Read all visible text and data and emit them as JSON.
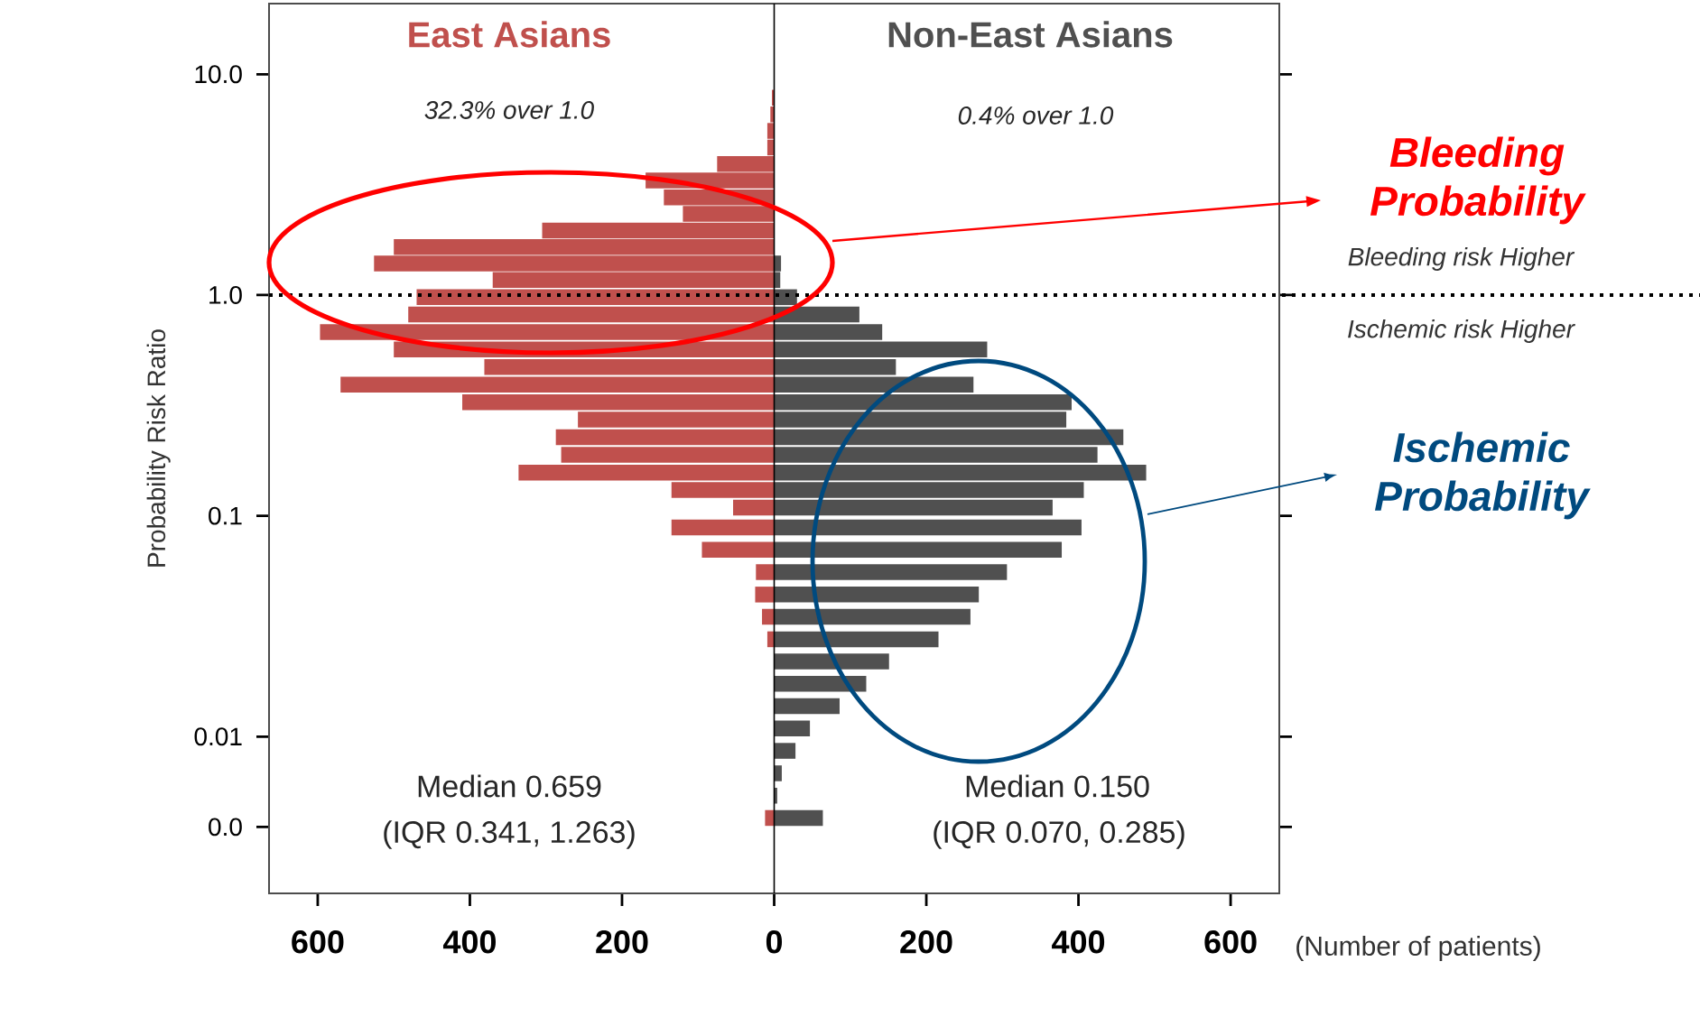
{
  "chart_data": {
    "type": "bar",
    "orientation": "horizontal",
    "ylabel": "Probability Risk Ratio",
    "xlabel": "(Number of patients)",
    "log": "y",
    "stacked": true,
    "x": [
      0.00428,
      0.0054,
      0.00682,
      0.00862,
      0.01088,
      0.01373,
      0.01734,
      0.0219,
      0.0276,
      0.0349,
      0.044,
      0.0556,
      0.0702,
      0.0886,
      0.109,
      0.131,
      0.157,
      0.189,
      0.227,
      0.273,
      0.327,
      0.393,
      0.472,
      0.567,
      0.68,
      0.817,
      0.978,
      1.17,
      1.39,
      1.65,
      1.96,
      2.33,
      2.77,
      3.3,
      3.92,
      4.66,
      5.54,
      6.58,
      7.83
    ],
    "series": [
      {
        "name": "East Asians",
        "color": "#c0504d",
        "values": [
          -12,
          0,
          0,
          0,
          0,
          0,
          0,
          0,
          -9,
          -16,
          -25,
          -24,
          -95,
          -135,
          -54,
          -135,
          -336,
          -280,
          -287,
          -258,
          -410,
          -570,
          -381,
          -500,
          -597,
          -481,
          -470,
          -370,
          -526,
          -500,
          -305,
          -120,
          -145,
          -169,
          -75,
          -9,
          -9,
          -5,
          -3
        ]
      },
      {
        "name": "Non-East Asians",
        "color": "#505050",
        "values": [
          64,
          4,
          10,
          28,
          47,
          86,
          121,
          151,
          216,
          258,
          269,
          306,
          378,
          404,
          366,
          407,
          489,
          425,
          459,
          384,
          391,
          262,
          160,
          280,
          142,
          112,
          30,
          8,
          9,
          0,
          0,
          0,
          0,
          0,
          0,
          0,
          0,
          0,
          0
        ]
      }
    ],
    "xlim": [
      -664,
      664
    ],
    "xticks": [
      {
        "value": -600,
        "label": "600"
      },
      {
        "value": -400,
        "label": "400"
      },
      {
        "value": -200,
        "label": "200"
      },
      0,
      200,
      400,
      600
    ],
    "ylim": [
      0.00195,
      20.9
    ],
    "yticks": [
      {
        "value": 0.0039,
        "label": "0.0"
      },
      0.01,
      0.1,
      {
        "value": 1,
        "label": "1.0"
      },
      {
        "value": 10,
        "label": "10.0"
      }
    ],
    "ref_lines": [
      {
        "axis": "y",
        "value": 1,
        "line_style": "dotted",
        "color": "#000000"
      },
      {
        "axis": "x",
        "value": 0,
        "line_style": "solid",
        "color": "#000000"
      }
    ],
    "annotations": [
      "32.3% over 1.0",
      "0.4% over 1.0",
      "Bleeding Probability",
      "Bleeding risk Higher",
      "Ischemic risk Higher",
      "Ischemic Probability",
      "Median 0.659",
      "(IQR 0.341, 1.263)",
      "Median 0.150",
      "(IQR 0.070, 0.285)"
    ]
  }
}
